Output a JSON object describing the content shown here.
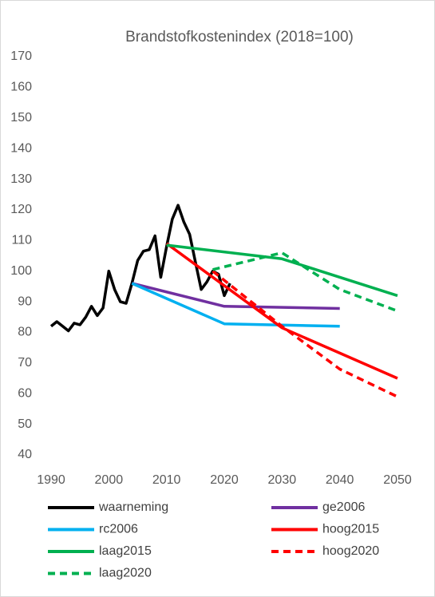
{
  "chart_data": {
    "type": "line",
    "title": "Brandstofkostenindex (2018=100)",
    "xlim": [
      1990,
      2050
    ],
    "xticks": [
      1990,
      2000,
      2010,
      2020,
      2030,
      2040,
      2050
    ],
    "ylim": [
      40,
      170
    ],
    "yticks": [
      40,
      50,
      60,
      70,
      80,
      90,
      100,
      110,
      120,
      130,
      140,
      150,
      160,
      170
    ],
    "grid": false,
    "legend": "bottom",
    "series": [
      {
        "name": "waarneming",
        "color": "#000000",
        "dashed": false,
        "x": [
          1990,
          1991,
          1992,
          1993,
          1994,
          1995,
          1996,
          1997,
          1998,
          1999,
          2000,
          2001,
          2002,
          2003,
          2004,
          2005,
          2006,
          2007,
          2008,
          2009,
          2010,
          2011,
          2012,
          2013,
          2014,
          2015,
          2016,
          2017,
          2018,
          2019,
          2020,
          2021
        ],
        "values": [
          82,
          83.5,
          82,
          80.5,
          83,
          82.5,
          85,
          88.5,
          85.5,
          88,
          100,
          94,
          90,
          89.5,
          96,
          103.5,
          106.5,
          107,
          111.5,
          98,
          108,
          117,
          121.5,
          116,
          112,
          103,
          94,
          96.5,
          100,
          99,
          92,
          96
        ]
      },
      {
        "name": "ge2006",
        "color": "#7030a0",
        "dashed": false,
        "x": [
          2004,
          2020,
          2040
        ],
        "values": [
          96,
          88.5,
          87.8
        ]
      },
      {
        "name": "rc2006",
        "color": "#00b0f0",
        "dashed": false,
        "x": [
          2004,
          2020,
          2040
        ],
        "values": [
          96,
          82.8,
          82
        ]
      },
      {
        "name": "hoog2015",
        "color": "#ff0000",
        "dashed": false,
        "x": [
          2010,
          2030,
          2050
        ],
        "values": [
          109,
          81.5,
          65
        ]
      },
      {
        "name": "laag2015",
        "color": "#00b050",
        "dashed": false,
        "x": [
          2010,
          2030,
          2050
        ],
        "values": [
          108.5,
          104,
          92
        ]
      },
      {
        "name": "hoog2020",
        "color": "#ff0000",
        "dashed": true,
        "x": [
          2018,
          2030,
          2040,
          2050
        ],
        "values": [
          100,
          82,
          68,
          59
        ]
      },
      {
        "name": "laag2020",
        "color": "#00b050",
        "dashed": true,
        "x": [
          2018,
          2030,
          2040,
          2050
        ],
        "values": [
          100.5,
          106,
          94,
          87
        ]
      }
    ]
  }
}
